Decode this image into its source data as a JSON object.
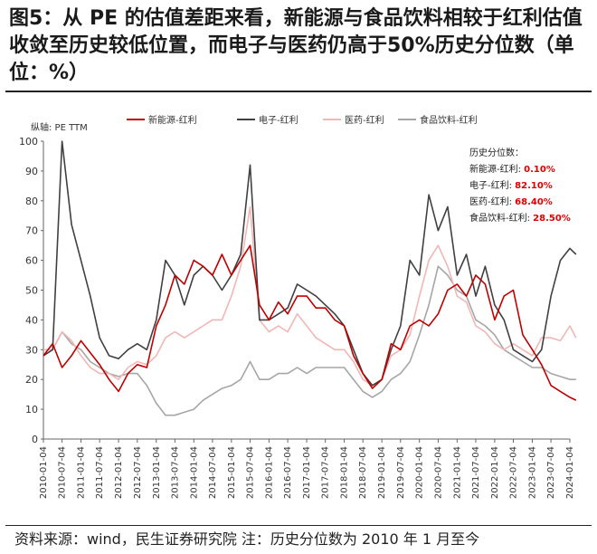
{
  "figure": {
    "title": "图5：从 PE 的估值差距来看，新能源与食品饮料相较于红利估值收敛至历史较低位置，而电子与医药仍高于50%历史分位数（单位：%）",
    "source_note": "资料来源：wind，民生证券研究院 注：历史分位数为 2010 年 1 月至今"
  },
  "colors": {
    "新能源": "#c00000",
    "电子": "#404040",
    "医药": "#f2b6b6",
    "食品饮料": "#a6a6a6",
    "annotation": "#e00000"
  },
  "chart_data": {
    "type": "line",
    "ylabel": "PE TTM",
    "ylabel_prefix": "纵轴:",
    "ylim": [
      0,
      100
    ],
    "yticks": [
      0,
      10,
      20,
      30,
      40,
      50,
      60,
      70,
      80,
      90,
      100
    ],
    "grid": false,
    "legend_position": "top",
    "x_tick_labels": [
      "2010-01-04",
      "2010-07-04",
      "2011-01-04",
      "2011-07-04",
      "2012-01-04",
      "2012-07-04",
      "2013-01-04",
      "2013-07-04",
      "2014-01-04",
      "2014-07-04",
      "2015-01-04",
      "2015-07-04",
      "2016-01-04",
      "2016-07-04",
      "2017-01-04",
      "2017-07-04",
      "2018-01-04",
      "2018-07-04",
      "2019-01-04",
      "2019-07-04",
      "2020-01-04",
      "2020-07-04",
      "2021-01-04",
      "2021-07-04",
      "2022-01-04",
      "2022-07-04",
      "2023-01-04",
      "2023-07-04",
      "2024-01-04"
    ],
    "x_dates": [
      "2010-01",
      "2010-04",
      "2010-07",
      "2010-10",
      "2011-01",
      "2011-04",
      "2011-07",
      "2011-10",
      "2012-01",
      "2012-04",
      "2012-07",
      "2012-10",
      "2013-01",
      "2013-04",
      "2013-07",
      "2013-10",
      "2014-01",
      "2014-04",
      "2014-07",
      "2014-10",
      "2015-01",
      "2015-04",
      "2015-07",
      "2015-10",
      "2016-01",
      "2016-04",
      "2016-07",
      "2016-10",
      "2017-01",
      "2017-04",
      "2017-07",
      "2017-10",
      "2018-01",
      "2018-04",
      "2018-07",
      "2018-10",
      "2019-01",
      "2019-04",
      "2019-07",
      "2019-10",
      "2020-01",
      "2020-04",
      "2020-07",
      "2020-10",
      "2021-01",
      "2021-04",
      "2021-07",
      "2021-10",
      "2022-01",
      "2022-04",
      "2022-07",
      "2022-10",
      "2023-01",
      "2023-04",
      "2023-07",
      "2023-10",
      "2024-01",
      "2024-03"
    ],
    "series": [
      {
        "name": "新能源-红利",
        "color_key": "新能源",
        "values": [
          28,
          32,
          24,
          28,
          33,
          29,
          25,
          20,
          16,
          22,
          25,
          24,
          38,
          45,
          55,
          52,
          60,
          58,
          55,
          62,
          55,
          60,
          65,
          45,
          40,
          46,
          42,
          48,
          48,
          44,
          44,
          40,
          38,
          28,
          22,
          17,
          20,
          32,
          30,
          38,
          40,
          38,
          42,
          50,
          52,
          48,
          55,
          52,
          40,
          48,
          50,
          35,
          30,
          25,
          18,
          16,
          14,
          13
        ]
      },
      {
        "name": "电子-红利",
        "color_key": "电子",
        "values": [
          28,
          30,
          100,
          72,
          60,
          48,
          34,
          28,
          27,
          30,
          32,
          30,
          40,
          60,
          55,
          45,
          55,
          58,
          55,
          50,
          55,
          62,
          92,
          40,
          40,
          42,
          44,
          52,
          50,
          48,
          45,
          42,
          38,
          30,
          22,
          18,
          20,
          30,
          38,
          60,
          55,
          82,
          70,
          78,
          55,
          62,
          48,
          58,
          45,
          40,
          30,
          28,
          26,
          30,
          48,
          60,
          64,
          62
        ]
      },
      {
        "name": "医药-红利",
        "color_key": "医药",
        "values": [
          30,
          30,
          36,
          33,
          28,
          24,
          22,
          22,
          20,
          24,
          26,
          25,
          28,
          34,
          36,
          34,
          36,
          38,
          40,
          40,
          48,
          58,
          78,
          40,
          36,
          38,
          36,
          42,
          38,
          34,
          32,
          30,
          30,
          26,
          20,
          18,
          20,
          28,
          30,
          35,
          48,
          60,
          65,
          58,
          48,
          46,
          38,
          36,
          32,
          30,
          32,
          30,
          28,
          34,
          34,
          33,
          38,
          34
        ]
      },
      {
        "name": "食品饮料-红利",
        "color_key": "食品饮料",
        "values": [
          28,
          30,
          36,
          32,
          30,
          26,
          24,
          22,
          21,
          22,
          22,
          18,
          12,
          8,
          8,
          9,
          10,
          13,
          15,
          17,
          18,
          20,
          26,
          20,
          20,
          22,
          22,
          24,
          22,
          24,
          24,
          24,
          24,
          20,
          16,
          14,
          16,
          20,
          22,
          26,
          35,
          45,
          58,
          55,
          50,
          48,
          40,
          38,
          35,
          30,
          28,
          26,
          24,
          24,
          22,
          21,
          20,
          20
        ]
      }
    ],
    "annotation": {
      "heading": "历史分位数：",
      "items": [
        {
          "label": "新能源-红利:",
          "value": "0.10%"
        },
        {
          "label": "电子-红利:",
          "value": "82.10%"
        },
        {
          "label": "医药-红利:",
          "value": "68.40%"
        },
        {
          "label": "食品饮料-红利:",
          "value": "28.50%"
        }
      ]
    }
  }
}
